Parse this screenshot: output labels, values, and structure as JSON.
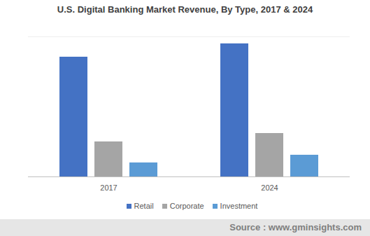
{
  "chart_data": {
    "type": "bar",
    "title": "U.S. Digital Banking Market Revenue, By Type, 2017 & 2024",
    "categories": [
      "2017",
      "2024"
    ],
    "series": [
      {
        "name": "Retail",
        "color": "#4472c4",
        "values": [
          171,
          190
        ]
      },
      {
        "name": "Corporate",
        "color": "#a5a5a5",
        "values": [
          50,
          62
        ]
      },
      {
        "name": "Investment",
        "color": "#5b9bd5",
        "values": [
          20,
          31
        ]
      }
    ],
    "ylim": [
      0,
      200
    ],
    "tick_labels": "x",
    "legend": "bottom",
    "source": "Source : www.gminsights.com"
  }
}
